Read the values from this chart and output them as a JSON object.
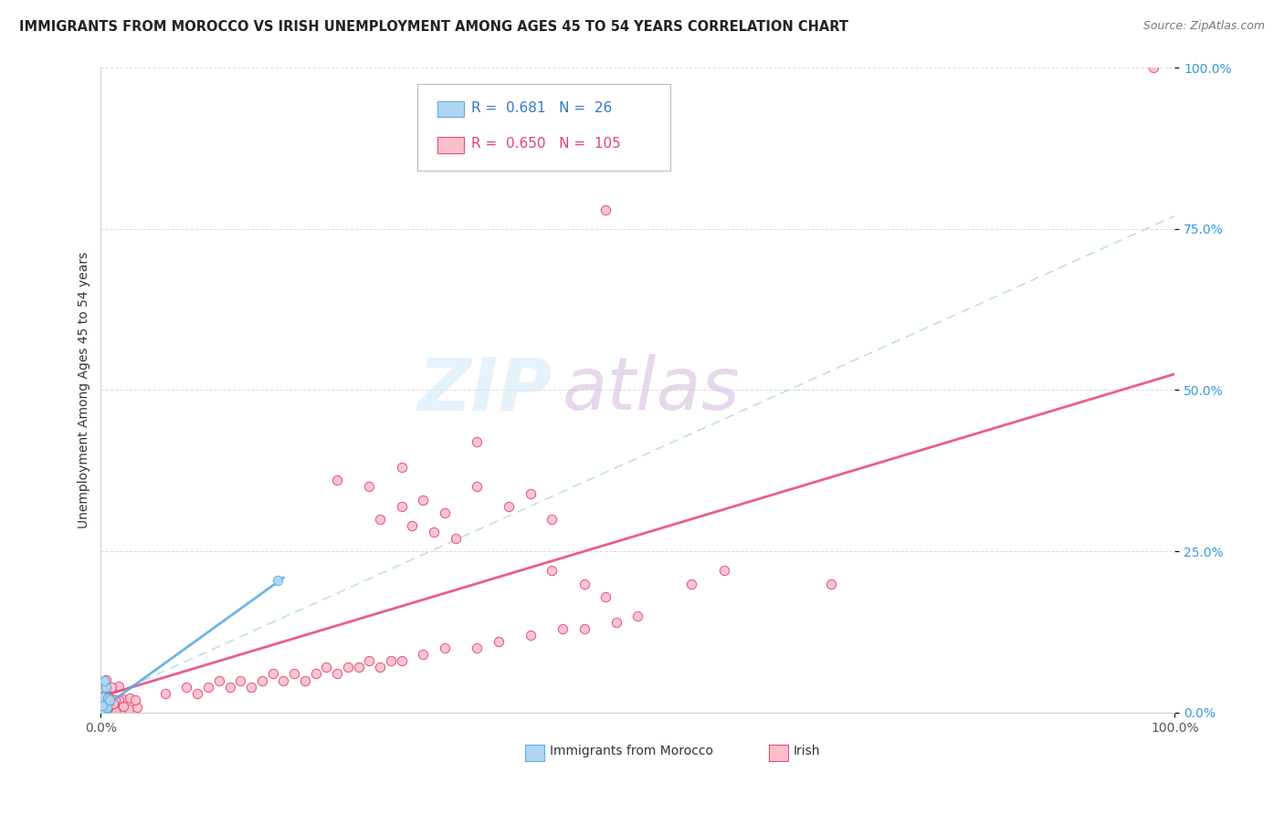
{
  "title": "IMMIGRANTS FROM MOROCCO VS IRISH UNEMPLOYMENT AMONG AGES 45 TO 54 YEARS CORRELATION CHART",
  "source": "Source: ZipAtlas.com",
  "ylabel": "Unemployment Among Ages 45 to 54 years",
  "xlim": [
    0,
    1.0
  ],
  "ylim": [
    0,
    1.0
  ],
  "ytick_labels": [
    "0.0%",
    "25.0%",
    "50.0%",
    "75.0%",
    "100.0%"
  ],
  "ytick_values": [
    0.0,
    0.25,
    0.5,
    0.75,
    1.0
  ],
  "grid_color": "#cccccc",
  "background_color": "#ffffff",
  "legend_R_morocco": "0.681",
  "legend_N_morocco": "26",
  "legend_R_irish": "0.650",
  "legend_N_irish": "105",
  "morocco_fill_color": "#aed6f1",
  "morocco_edge_color": "#5dade2",
  "irish_fill_color": "#f9c0cb",
  "irish_edge_color": "#e74c7a",
  "morocco_line_color": "#5dade2",
  "irish_line_color": "#e74c7a",
  "dashed_line_color": "#aed6f1",
  "watermark_zip_color": "#d6eaf8",
  "watermark_atlas_color": "#d7bde2",
  "title_color": "#222222",
  "source_color": "#777777",
  "ylabel_color": "#333333",
  "ytick_color": "#3399dd",
  "xtick_color": "#555555",
  "legend_text_morocco_color": "#3377cc",
  "legend_text_irish_color": "#e84070"
}
